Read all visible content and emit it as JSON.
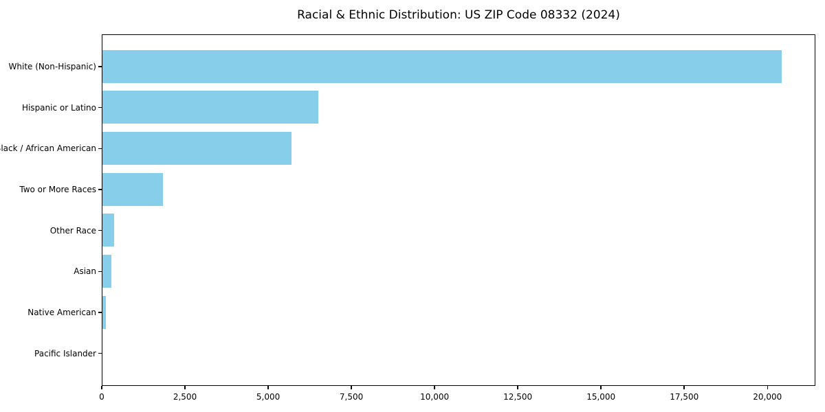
{
  "chart_data": {
    "type": "bar",
    "orientation": "horizontal",
    "title": "Racial & Ethnic Distribution: US ZIP Code 08332 (2024)",
    "categories": [
      "White (Non-Hispanic)",
      "Hispanic or Latino",
      "Black / African American",
      "Two or More Races",
      "Other Race",
      "Asian",
      "Native American",
      "Pacific Islander"
    ],
    "values": [
      20400,
      6480,
      5670,
      1810,
      360,
      270,
      110,
      0
    ],
    "xlabel": "",
    "ylabel": "",
    "xlim": [
      0,
      21440
    ],
    "x_ticks": [
      0,
      2500,
      5000,
      7500,
      10000,
      12500,
      15000,
      17500,
      20000
    ],
    "x_tick_labels": [
      "0",
      "2,500",
      "5,000",
      "7,500",
      "10,000",
      "12,500",
      "15,000",
      "17,500",
      "20,000"
    ],
    "bar_color": "#87CEEB",
    "grid": false,
    "legend": null
  },
  "colors": {
    "bar": "#87CEEB",
    "axis": "#000000",
    "background": "#ffffff",
    "text": "#000000"
  }
}
